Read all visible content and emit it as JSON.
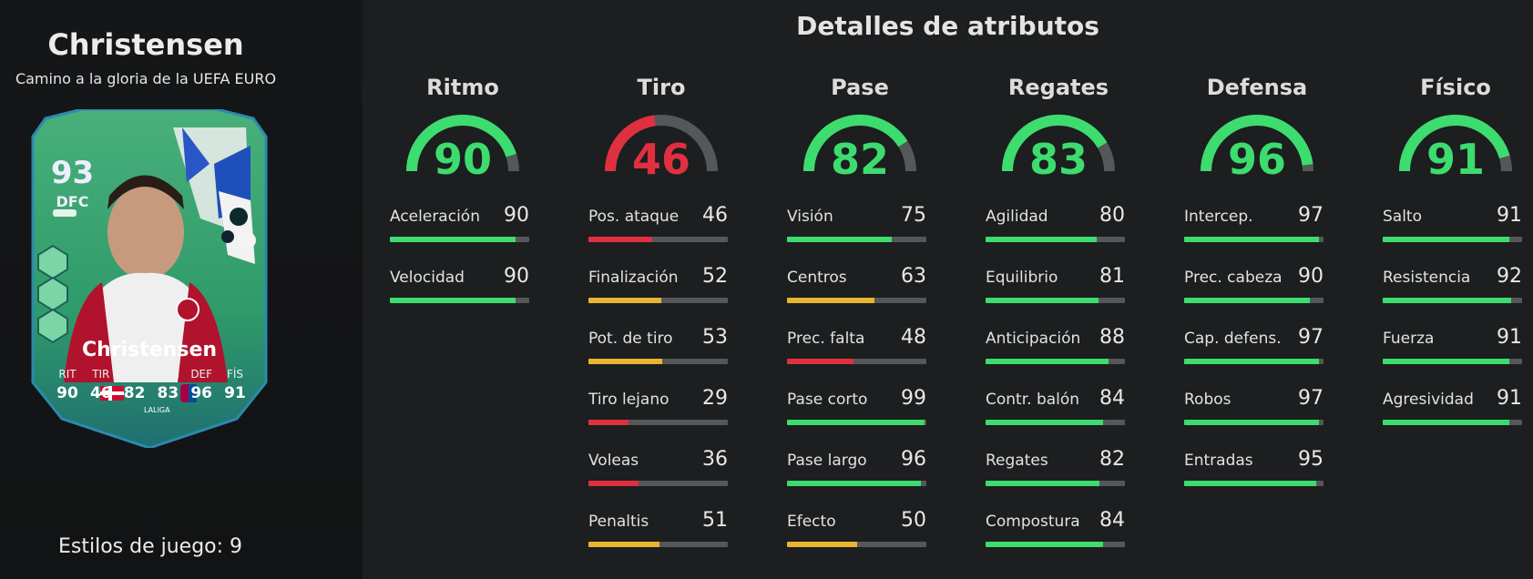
{
  "player": {
    "name": "Christensen",
    "subtitle": "Camino a la gloria de la UEFA EURO"
  },
  "card": {
    "rating": "93",
    "position": "DFC",
    "name": "Christensen",
    "stat_labels": [
      "RIT",
      "TIR",
      "PAS",
      "REG",
      "DEF",
      "FÍS"
    ],
    "stat_values": [
      "90",
      "46",
      "82",
      "83",
      "96",
      "91"
    ],
    "league_text": "LALIGA"
  },
  "playstyles": "Estilos de juego: 9",
  "title": "Detalles de atributos",
  "colors": {
    "green": "#3ddc6e",
    "yellow": "#e8b530",
    "red": "#e03040",
    "track": "#555759"
  },
  "categories": [
    {
      "name": "Ritmo",
      "value": 90,
      "attributes": [
        {
          "name": "Aceleración",
          "value": 90
        },
        {
          "name": "Velocidad",
          "value": 90
        }
      ]
    },
    {
      "name": "Tiro",
      "value": 46,
      "attributes": [
        {
          "name": "Pos. ataque",
          "value": 46
        },
        {
          "name": "Finalización",
          "value": 52
        },
        {
          "name": "Pot. de tiro",
          "value": 53
        },
        {
          "name": "Tiro lejano",
          "value": 29
        },
        {
          "name": "Voleas",
          "value": 36
        },
        {
          "name": "Penaltis",
          "value": 51
        }
      ]
    },
    {
      "name": "Pase",
      "value": 82,
      "attributes": [
        {
          "name": "Visión",
          "value": 75
        },
        {
          "name": "Centros",
          "value": 63
        },
        {
          "name": "Prec. falta",
          "value": 48
        },
        {
          "name": "Pase corto",
          "value": 99
        },
        {
          "name": "Pase largo",
          "value": 96
        },
        {
          "name": "Efecto",
          "value": 50
        }
      ]
    },
    {
      "name": "Regates",
      "value": 83,
      "attributes": [
        {
          "name": "Agilidad",
          "value": 80
        },
        {
          "name": "Equilibrio",
          "value": 81
        },
        {
          "name": "Anticipación",
          "value": 88
        },
        {
          "name": "Contr. balón",
          "value": 84
        },
        {
          "name": "Regates",
          "value": 82
        },
        {
          "name": "Compostura",
          "value": 84
        }
      ]
    },
    {
      "name": "Defensa",
      "value": 96,
      "attributes": [
        {
          "name": "Intercep.",
          "value": 97
        },
        {
          "name": "Prec. cabeza",
          "value": 90
        },
        {
          "name": "Cap. defens.",
          "value": 97
        },
        {
          "name": "Robos",
          "value": 97
        },
        {
          "name": "Entradas",
          "value": 95
        }
      ]
    },
    {
      "name": "Físico",
      "value": 91,
      "attributes": [
        {
          "name": "Salto",
          "value": 91
        },
        {
          "name": "Resistencia",
          "value": 92
        },
        {
          "name": "Fuerza",
          "value": 91
        },
        {
          "name": "Agresividad",
          "value": 91
        }
      ]
    }
  ]
}
